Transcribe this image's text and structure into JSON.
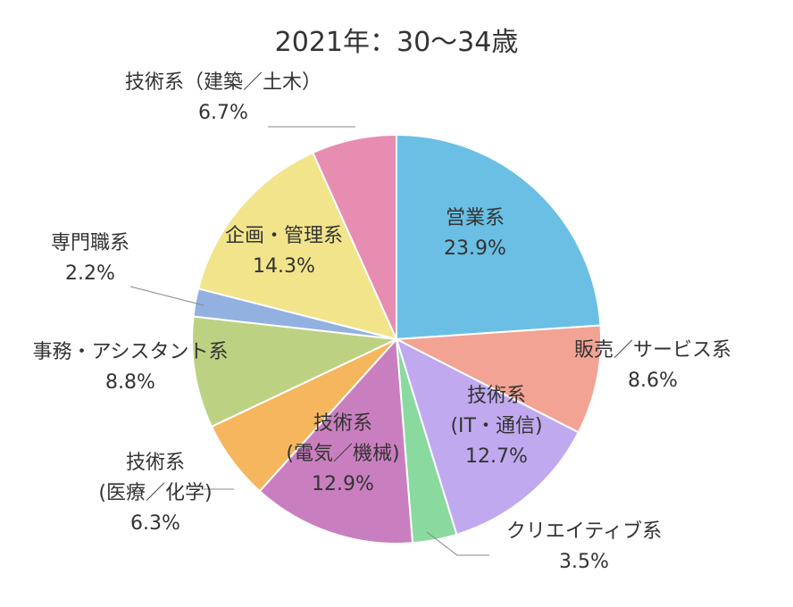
{
  "chart_data": {
    "type": "pie",
    "title": "2021年：30〜34歳",
    "unit": "%",
    "slices": [
      {
        "lines": [
          "営業系"
        ],
        "value": 23.9,
        "value_label": "23.9%",
        "color": "#6BBFE4"
      },
      {
        "lines": [
          "販売／サービス系"
        ],
        "value": 8.6,
        "value_label": "8.6%",
        "color": "#F2A393"
      },
      {
        "lines": [
          "技術系",
          "(IT・通信)"
        ],
        "value": 12.7,
        "value_label": "12.7%",
        "color": "#C0A9EE"
      },
      {
        "lines": [
          "クリエイティブ系"
        ],
        "value": 3.5,
        "value_label": "3.5%",
        "color": "#8AD99E"
      },
      {
        "lines": [
          "技術系",
          "(電気／機械)"
        ],
        "value": 12.9,
        "value_label": "12.9%",
        "color": "#C97FBF"
      },
      {
        "lines": [
          "技術系",
          "(医療／化学)"
        ],
        "value": 6.3,
        "value_label": "6.3%",
        "color": "#F5B65E"
      },
      {
        "lines": [
          "事務・アシスタント系"
        ],
        "value": 8.8,
        "value_label": "8.8%",
        "color": "#BDD183"
      },
      {
        "lines": [
          "専門職系"
        ],
        "value": 2.2,
        "value_label": "2.2%",
        "color": "#92B1E0"
      },
      {
        "lines": [
          "企画・管理系"
        ],
        "value": 14.3,
        "value_label": "14.3%",
        "color": "#F2E48A"
      },
      {
        "lines": [
          "技術系（建築／土木）"
        ],
        "value": 6.7,
        "value_label": "6.7%",
        "color": "#E78DB1"
      }
    ]
  }
}
